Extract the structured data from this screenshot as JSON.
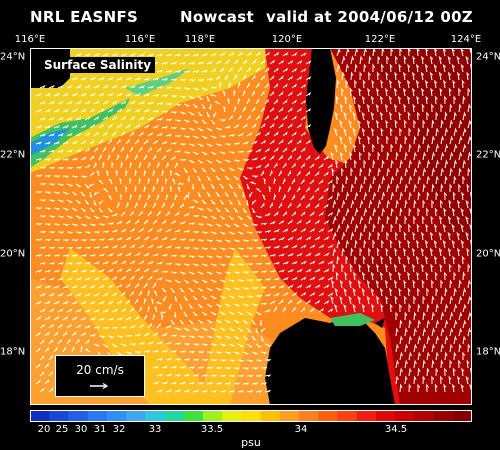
{
  "header": {
    "model": "NRL EASNFS",
    "product": "Nowcast",
    "valid": "valid at 2004/06/12 00Z"
  },
  "map": {
    "title": "Surface Salinity",
    "lon_ticks": [
      "116°E",
      "118°E",
      "120°E",
      "122°E",
      "124°E"
    ],
    "lat_ticks": [
      "24°N",
      "22°N",
      "20°N",
      "18°N"
    ]
  },
  "vector_legend": {
    "label": "20 cm/s"
  },
  "colorbar": {
    "unit": "psu",
    "labels": [
      "20",
      "25",
      "30",
      "31",
      "32",
      "33",
      "33.5",
      "34",
      "34.5"
    ],
    "colors": [
      "#1030c0",
      "#1848d8",
      "#2060e8",
      "#2878f0",
      "#3090f8",
      "#40a8f0",
      "#30c8e0",
      "#20d8a0",
      "#40e040",
      "#a0f020",
      "#e8f010",
      "#ffe000",
      "#ffc000",
      "#ffa020",
      "#ff8020",
      "#ff6010",
      "#ff4010",
      "#f02010",
      "#e00808",
      "#c80000",
      "#b00000",
      "#980000",
      "#800000"
    ]
  },
  "colors": {
    "land": "#000000",
    "arrows": "#ffffff",
    "fresh_coastal": "#40c060",
    "mid_yellow": "#f0d020",
    "orange": "#ff8c20",
    "red": "#e01010",
    "darkred": "#a00000"
  }
}
